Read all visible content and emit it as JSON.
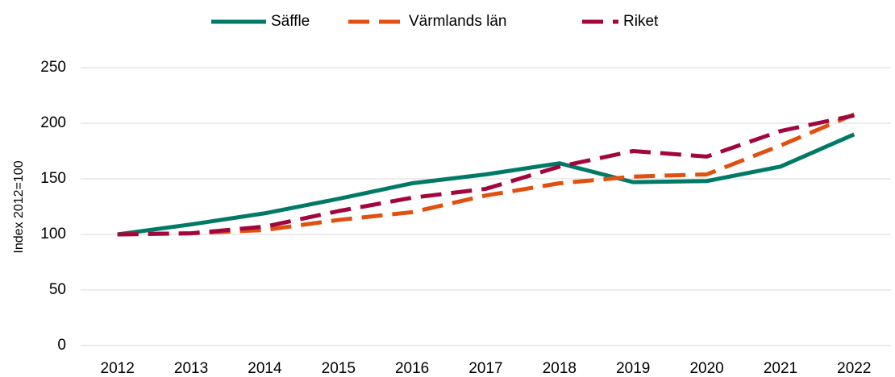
{
  "chart_data": {
    "type": "line",
    "y_label": "Index 2012=100",
    "categories": [
      "2012",
      "2013",
      "2014",
      "2015",
      "2016",
      "2017",
      "2018",
      "2019",
      "2020",
      "2021",
      "2022"
    ],
    "series": [
      {
        "name": "Säffle",
        "color": "#007a67",
        "dashed": false,
        "values": [
          100,
          109,
          119,
          132,
          146,
          154,
          164,
          147,
          148,
          161,
          190
        ]
      },
      {
        "name": "Värmlands län",
        "color": "#e0500f",
        "dashed": true,
        "values": [
          100,
          101,
          104,
          113,
          120,
          135,
          146,
          152,
          154,
          180,
          208
        ]
      },
      {
        "name": "Riket",
        "color": "#a3063f",
        "dashed": true,
        "values": [
          100,
          101,
          107,
          121,
          133,
          141,
          161,
          175,
          170,
          193,
          207
        ]
      }
    ],
    "ylim": [
      0,
      250
    ],
    "yticks": [
      0,
      50,
      100,
      150,
      200,
      250
    ],
    "grid": true,
    "legend": "top"
  }
}
